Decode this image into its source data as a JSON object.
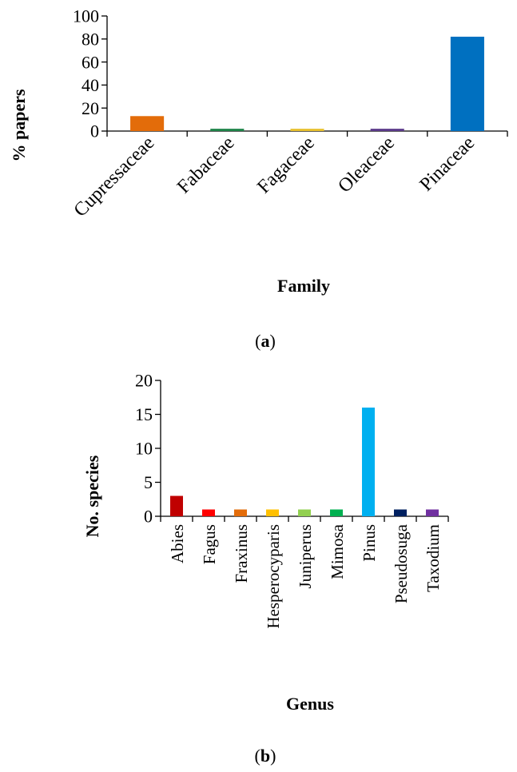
{
  "chart_data": [
    {
      "type": "bar",
      "panel_label": "a",
      "title": "",
      "xlabel": "Family",
      "ylabel": "% papers",
      "categories": [
        "Cupressaceae",
        "Fabaceae",
        "Fagaceae",
        "Oleaceae",
        "Pinaceae"
      ],
      "values": [
        13,
        2,
        2,
        2,
        82
      ],
      "colors": [
        "#E36C0A",
        "#1E8449",
        "#E8C02E",
        "#5B3A8A",
        "#0070C0"
      ],
      "ylim": [
        0,
        100
      ],
      "yticks": [
        0,
        20,
        40,
        60,
        80,
        100
      ],
      "grid": false,
      "legend": "none"
    },
    {
      "type": "bar",
      "panel_label": "b",
      "title": "",
      "xlabel": "Genus",
      "ylabel": "No. species",
      "categories": [
        "Abies",
        "Fagus",
        "Fraxinus",
        "Hesperocyparis",
        "Juniperus",
        "Mimosa",
        "Pinus",
        "Pseudosuga",
        "Taxodium"
      ],
      "values": [
        3,
        1,
        1,
        1,
        1,
        1,
        16,
        1,
        1
      ],
      "colors": [
        "#C00000",
        "#FF0000",
        "#E36C0A",
        "#FFC000",
        "#92D050",
        "#00B050",
        "#00B0F0",
        "#002060",
        "#7030A0"
      ],
      "ylim": [
        0,
        20
      ],
      "yticks": [
        0,
        5,
        10,
        15,
        20
      ],
      "grid": false,
      "legend": "none"
    }
  ]
}
